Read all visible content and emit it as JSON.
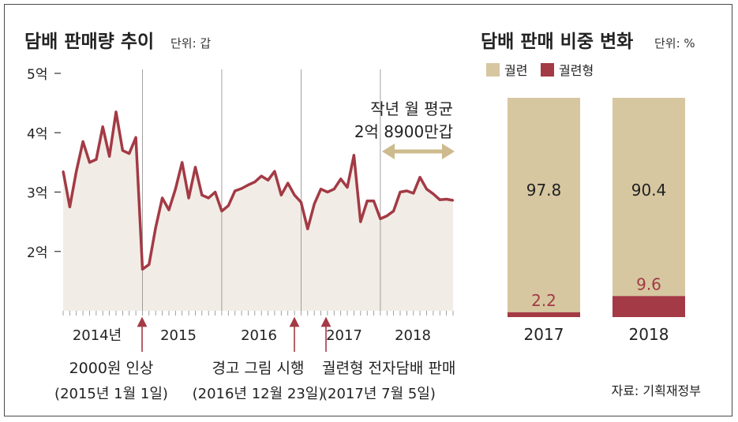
{
  "left_panel": {
    "title": "담배 판매량 추이",
    "unit": "단위: 갑"
  },
  "right_panel": {
    "title": "담배 판매 비중 변화",
    "unit": "단위: %"
  },
  "annotations": {
    "avg_line1": "작년 월 평균",
    "avg_line2": "2억 8900만갑",
    "event1_line1": "2000원 인상",
    "event1_line2": "(2015년 1월 1일)",
    "event2_line1": "경고 그림 시행",
    "event2_line2": "(2016년 12월 23일)",
    "event3_line1": "궐련형 전자담배 판매",
    "event3_line2": "(2017년 7월 5일)"
  },
  "source": "자료: 기획재정부",
  "colors": {
    "line": "#a33a45",
    "area": "#f1ede6",
    "tan": "#d6c7a1",
    "red": "#a33a45",
    "arrow": "#cdbb8e",
    "text": "#222222"
  },
  "chart_data": [
    {
      "type": "area",
      "title": "담배 판매량 추이",
      "unit": "단위: 갑",
      "ylim": [
        1,
        5
      ],
      "yticks": [
        2,
        3,
        4,
        5
      ],
      "ytick_labels": [
        "2억",
        "3억",
        "4억",
        "5억"
      ],
      "year_labels": [
        "2014년",
        "2015",
        "2016",
        "2017",
        "2018"
      ],
      "months_per_year": 12,
      "series": [
        {
          "values": [
            3.35,
            2.75,
            3.35,
            3.85,
            3.5,
            3.55,
            4.1,
            3.6,
            4.35,
            3.7,
            3.65,
            3.92,
            1.7,
            1.78,
            2.4,
            2.9,
            2.7,
            3.05,
            3.5,
            2.9,
            3.42,
            2.95,
            2.9,
            3.0,
            2.68,
            2.77,
            3.02,
            3.06,
            3.12,
            3.17,
            3.27,
            3.2,
            3.35,
            2.95,
            3.15,
            2.95,
            2.83,
            2.38,
            2.8,
            3.05,
            3.0,
            3.05,
            3.22,
            3.08,
            3.62,
            2.5,
            2.85,
            2.85,
            2.55,
            2.6,
            2.68,
            3.0,
            3.02,
            2.98,
            3.25,
            3.05,
            2.97,
            2.87,
            2.88,
            2.86
          ]
        }
      ]
    },
    {
      "type": "bar",
      "title": "담배 판매 비중 변화",
      "unit": "단위: %",
      "categories": [
        "2017",
        "2018"
      ],
      "series": [
        {
          "name": "궐련",
          "values": [
            97.8,
            90.4
          ]
        },
        {
          "name": "궐련형",
          "values": [
            2.2,
            9.6
          ]
        }
      ]
    }
  ]
}
